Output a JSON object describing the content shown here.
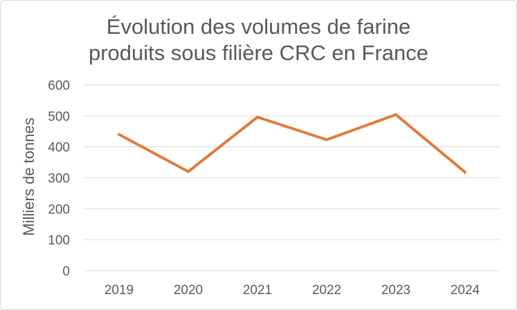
{
  "chart_data": {
    "type": "line",
    "title_lines": [
      "Évolution des volumes de farine",
      "produits sous filière CRC en France"
    ],
    "xlabel": "",
    "ylabel": "Milliers de tonnes",
    "categories": [
      "2019",
      "2020",
      "2021",
      "2022",
      "2023",
      "2024"
    ],
    "series": [
      {
        "values": [
          440,
          320,
          496,
          423,
          504,
          318
        ]
      }
    ],
    "ylim": [
      0,
      600
    ],
    "yticks": [
      0,
      100,
      200,
      300,
      400,
      500,
      600
    ],
    "ytick_labels": [
      "0",
      "100",
      "200",
      "300",
      "400",
      "500",
      "600"
    ],
    "grid": true,
    "legend": "none",
    "colors": {
      "line": "#e07b39",
      "grid": "#d9d9d9",
      "text": "#595959"
    }
  }
}
